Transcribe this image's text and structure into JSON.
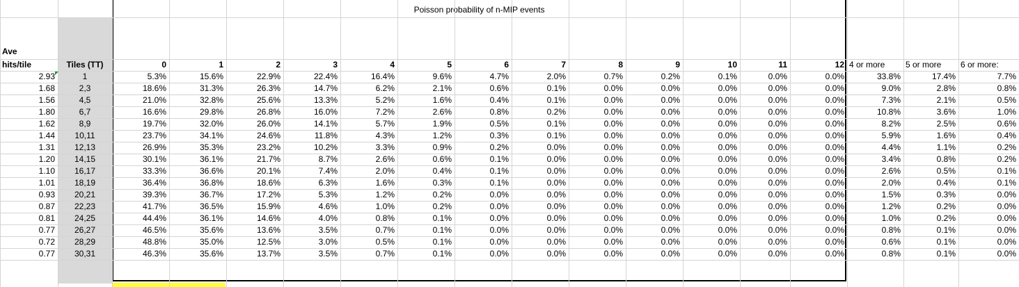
{
  "sheet": {
    "title": "Poisson probability of n-MIP events",
    "header_ave": [
      "Ave",
      "hits/tile"
    ],
    "header_tiles": "Tiles (TT)",
    "col_headers": [
      "0",
      "1",
      "2",
      "3",
      "4",
      "5",
      "6",
      "7",
      "8",
      "9",
      "10",
      "11",
      "12",
      "4 or more",
      "5 or more",
      "6 or more:"
    ],
    "rows": [
      {
        "ave": "2.93",
        "tiles": "1",
        "vals": [
          "5.3%",
          "15.6%",
          "22.9%",
          "22.4%",
          "16.4%",
          "9.6%",
          "4.7%",
          "2.0%",
          "0.7%",
          "0.2%",
          "0.1%",
          "0.0%",
          "0.0%",
          "33.8%",
          "17.4%",
          "7.7%"
        ]
      },
      {
        "ave": "1.68",
        "tiles": "2,3",
        "vals": [
          "18.6%",
          "31.3%",
          "26.3%",
          "14.7%",
          "6.2%",
          "2.1%",
          "0.6%",
          "0.1%",
          "0.0%",
          "0.0%",
          "0.0%",
          "0.0%",
          "0.0%",
          "9.0%",
          "2.8%",
          "0.8%"
        ]
      },
      {
        "ave": "1.56",
        "tiles": "4,5",
        "vals": [
          "21.0%",
          "32.8%",
          "25.6%",
          "13.3%",
          "5.2%",
          "1.6%",
          "0.4%",
          "0.1%",
          "0.0%",
          "0.0%",
          "0.0%",
          "0.0%",
          "0.0%",
          "7.3%",
          "2.1%",
          "0.5%"
        ]
      },
      {
        "ave": "1.80",
        "tiles": "6,7",
        "vals": [
          "16.6%",
          "29.8%",
          "26.8%",
          "16.0%",
          "7.2%",
          "2.6%",
          "0.8%",
          "0.2%",
          "0.0%",
          "0.0%",
          "0.0%",
          "0.0%",
          "0.0%",
          "10.8%",
          "3.6%",
          "1.0%"
        ]
      },
      {
        "ave": "1.62",
        "tiles": "8,9",
        "vals": [
          "19.7%",
          "32.0%",
          "26.0%",
          "14.1%",
          "5.7%",
          "1.9%",
          "0.5%",
          "0.1%",
          "0.0%",
          "0.0%",
          "0.0%",
          "0.0%",
          "0.0%",
          "8.2%",
          "2.5%",
          "0.6%"
        ]
      },
      {
        "ave": "1.44",
        "tiles": "10,11",
        "vals": [
          "23.7%",
          "34.1%",
          "24.6%",
          "11.8%",
          "4.3%",
          "1.2%",
          "0.3%",
          "0.1%",
          "0.0%",
          "0.0%",
          "0.0%",
          "0.0%",
          "0.0%",
          "5.9%",
          "1.6%",
          "0.4%"
        ]
      },
      {
        "ave": "1.31",
        "tiles": "12,13",
        "vals": [
          "26.9%",
          "35.3%",
          "23.2%",
          "10.2%",
          "3.3%",
          "0.9%",
          "0.2%",
          "0.0%",
          "0.0%",
          "0.0%",
          "0.0%",
          "0.0%",
          "0.0%",
          "4.4%",
          "1.1%",
          "0.2%"
        ]
      },
      {
        "ave": "1.20",
        "tiles": "14,15",
        "vals": [
          "30.1%",
          "36.1%",
          "21.7%",
          "8.7%",
          "2.6%",
          "0.6%",
          "0.1%",
          "0.0%",
          "0.0%",
          "0.0%",
          "0.0%",
          "0.0%",
          "0.0%",
          "3.4%",
          "0.8%",
          "0.2%"
        ]
      },
      {
        "ave": "1.10",
        "tiles": "16,17",
        "vals": [
          "33.3%",
          "36.6%",
          "20.1%",
          "7.4%",
          "2.0%",
          "0.4%",
          "0.1%",
          "0.0%",
          "0.0%",
          "0.0%",
          "0.0%",
          "0.0%",
          "0.0%",
          "2.6%",
          "0.5%",
          "0.1%"
        ]
      },
      {
        "ave": "1.01",
        "tiles": "18,19",
        "vals": [
          "36.4%",
          "36.8%",
          "18.6%",
          "6.3%",
          "1.6%",
          "0.3%",
          "0.1%",
          "0.0%",
          "0.0%",
          "0.0%",
          "0.0%",
          "0.0%",
          "0.0%",
          "2.0%",
          "0.4%",
          "0.1%"
        ]
      },
      {
        "ave": "0.93",
        "tiles": "20,21",
        "vals": [
          "39.3%",
          "36.7%",
          "17.2%",
          "5.3%",
          "1.2%",
          "0.2%",
          "0.0%",
          "0.0%",
          "0.0%",
          "0.0%",
          "0.0%",
          "0.0%",
          "0.0%",
          "1.5%",
          "0.3%",
          "0.0%"
        ]
      },
      {
        "ave": "0.87",
        "tiles": "22,23",
        "vals": [
          "41.7%",
          "36.5%",
          "15.9%",
          "4.6%",
          "1.0%",
          "0.2%",
          "0.0%",
          "0.0%",
          "0.0%",
          "0.0%",
          "0.0%",
          "0.0%",
          "0.0%",
          "1.2%",
          "0.2%",
          "0.0%"
        ]
      },
      {
        "ave": "0.81",
        "tiles": "24,25",
        "vals": [
          "44.4%",
          "36.1%",
          "14.6%",
          "4.0%",
          "0.8%",
          "0.1%",
          "0.0%",
          "0.0%",
          "0.0%",
          "0.0%",
          "0.0%",
          "0.0%",
          "0.0%",
          "1.0%",
          "0.2%",
          "0.0%"
        ]
      },
      {
        "ave": "0.77",
        "tiles": "26,27",
        "vals": [
          "46.5%",
          "35.6%",
          "13.6%",
          "3.5%",
          "0.7%",
          "0.1%",
          "0.0%",
          "0.0%",
          "0.0%",
          "0.0%",
          "0.0%",
          "0.0%",
          "0.0%",
          "0.8%",
          "0.1%",
          "0.0%"
        ]
      },
      {
        "ave": "0.72",
        "tiles": "28,29",
        "vals": [
          "48.8%",
          "35.0%",
          "12.5%",
          "3.0%",
          "0.5%",
          "0.1%",
          "0.0%",
          "0.0%",
          "0.0%",
          "0.0%",
          "0.0%",
          "0.0%",
          "0.0%",
          "0.6%",
          "0.1%",
          "0.0%"
        ]
      },
      {
        "ave": "0.77",
        "tiles": "30,31",
        "vals": [
          "46.3%",
          "35.6%",
          "13.7%",
          "3.5%",
          "0.7%",
          "0.1%",
          "0.0%",
          "0.0%",
          "0.0%",
          "0.0%",
          "0.0%",
          "0.0%",
          "0.0%",
          "0.8%",
          "0.1%",
          "0.0%"
        ]
      }
    ]
  },
  "colors": {
    "gridline": "#d4d4d4",
    "tiles_column_fill": "#d9d9d9",
    "highlight_fill": "#ffff33",
    "comment_flag": "#1f8f3a"
  }
}
